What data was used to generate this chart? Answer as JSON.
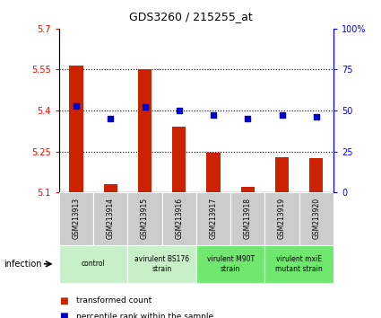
{
  "title": "GDS3260 / 215255_at",
  "samples": [
    "GSM213913",
    "GSM213914",
    "GSM213915",
    "GSM213916",
    "GSM213917",
    "GSM213918",
    "GSM213919",
    "GSM213920"
  ],
  "transformed_count": [
    5.565,
    5.13,
    5.55,
    5.34,
    5.245,
    5.12,
    5.23,
    5.225
  ],
  "percentile_rank": [
    53,
    45,
    52,
    50,
    47,
    45,
    47,
    46
  ],
  "ylim_left": [
    5.1,
    5.7
  ],
  "ylim_right": [
    0,
    100
  ],
  "yticks_left": [
    5.1,
    5.25,
    5.4,
    5.55,
    5.7
  ],
  "yticks_right": [
    0,
    25,
    50,
    75,
    100
  ],
  "ytick_labels_left": [
    "5.1",
    "5.25",
    "5.4",
    "5.55",
    "5.7"
  ],
  "ytick_labels_right": [
    "0",
    "25",
    "50",
    "75",
    "100%"
  ],
  "grid_yticks": [
    5.25,
    5.4,
    5.55
  ],
  "groups": [
    {
      "label": "control",
      "samples": [
        0,
        1
      ],
      "color": "#c8f0c8"
    },
    {
      "label": "avirulent BS176\nstrain",
      "samples": [
        2,
        3
      ],
      "color": "#c8f0c8"
    },
    {
      "label": "virulent M90T\nstrain",
      "samples": [
        4,
        5
      ],
      "color": "#70e870"
    },
    {
      "label": "virulent mxiE\nmutant strain",
      "samples": [
        6,
        7
      ],
      "color": "#70e870"
    }
  ],
  "bar_color": "#cc2200",
  "dot_color": "#0000cc",
  "bar_width": 0.4,
  "sample_label_bg": "#cccccc",
  "infection_label": "infection",
  "legend_items": [
    "transformed count",
    "percentile rank within the sample"
  ]
}
